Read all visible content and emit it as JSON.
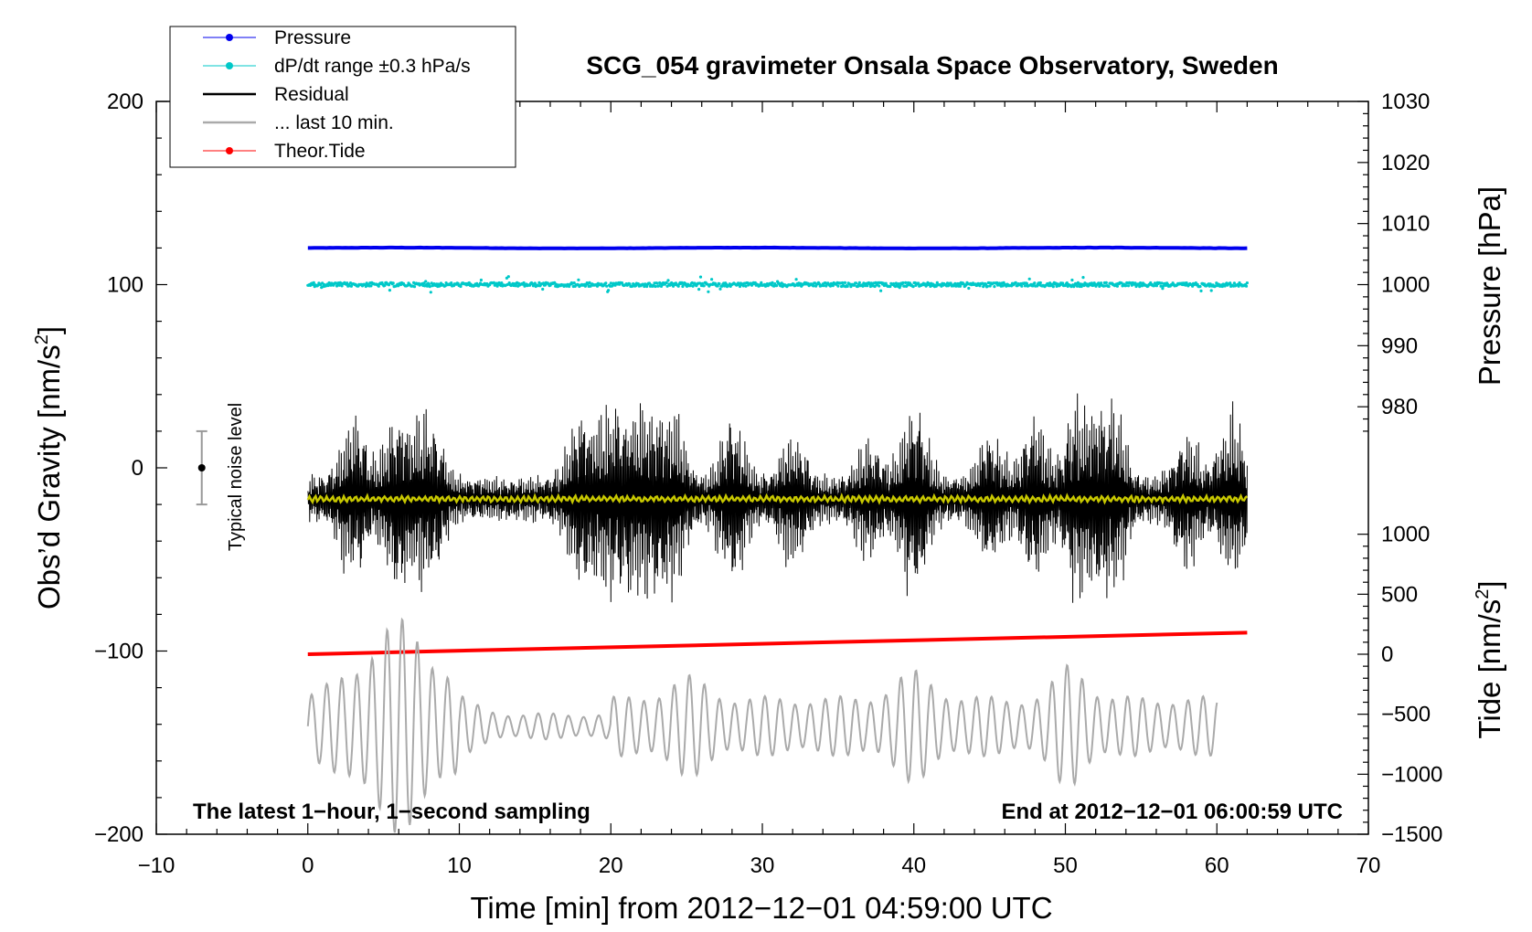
{
  "chart_data": {
    "type": "line",
    "title": "SCG_054 gravimeter Onsala Space Observatory, Sweden",
    "xlabel": "Time [min] from 2012−12−01 04:59:00 UTC",
    "ylabel": "Obs’d Gravity [nm/s²]",
    "ylabel_right_top": "Pressure [hPa]",
    "ylabel_right_bottom": "Tide [nm/s²]",
    "xlim": [
      -10,
      70
    ],
    "ylim": [
      -200,
      200
    ],
    "pressure_lim": [
      970,
      1030
    ],
    "tide_lim": [
      -1500,
      1000
    ],
    "x_ticks": [
      "−10",
      "0",
      "10",
      "20",
      "30",
      "40",
      "50",
      "60",
      "70"
    ],
    "y_ticks": [
      "−200",
      "−100",
      "0",
      "100",
      "200"
    ],
    "pressure_ticks": [
      "980",
      "990",
      "1000",
      "1010",
      "1020",
      "1030"
    ],
    "tide_ticks": [
      "−1500",
      "−1000",
      "−500",
      "0",
      "500",
      "1000"
    ],
    "legend": {
      "position": "top-left",
      "entries": [
        {
          "label": "Pressure",
          "color": "#0000ee",
          "marker": true
        },
        {
          "label": "dP/dt range ±0.3 hPa/s",
          "color": "#00c8c8",
          "marker": true
        },
        {
          "label": "Residual",
          "color": "#000000",
          "marker": false
        },
        {
          "label": "... last 10 min.",
          "color": "#aaaaaa",
          "marker": false
        },
        {
          "label": "Theor.Tide",
          "color": "#ff0000",
          "marker": true
        }
      ]
    },
    "annotations": {
      "left": "The latest 1−hour, 1−second sampling",
      "right": "End at 2012−12−01 06:00:59 UTC",
      "noise": "Typical noise level"
    },
    "noise_bar": {
      "x": -7,
      "y": 0,
      "half_range": 20
    },
    "series": [
      {
        "name": "Pressure",
        "color": "#0000ee",
        "x_range": [
          0,
          62
        ],
        "approx_value_hpa": 1006.0
      },
      {
        "name": "dP/dt range ±0.3 hPa/s",
        "color": "#00c8c8",
        "x_range": [
          0,
          62
        ],
        "approx_gravity_level": 100
      },
      {
        "name": "Residual",
        "color": "#000000",
        "x_range": [
          0,
          62
        ],
        "center": -17,
        "amplitude_range": [
          -80,
          53
        ]
      },
      {
        "name": "Residual smoothed",
        "color": "#c8c800",
        "x_range": [
          0,
          62
        ],
        "center": -17
      },
      {
        "name": "... last 10 min.",
        "color": "#aaaaaa",
        "x_range": [
          0,
          60
        ],
        "center_tide": -600,
        "amplitude_range": [
          -1900,
          -100
        ]
      },
      {
        "name": "Theor.Tide",
        "color": "#ff0000",
        "x": [
          0,
          62
        ],
        "tide_values": [
          0,
          180
        ]
      }
    ]
  }
}
